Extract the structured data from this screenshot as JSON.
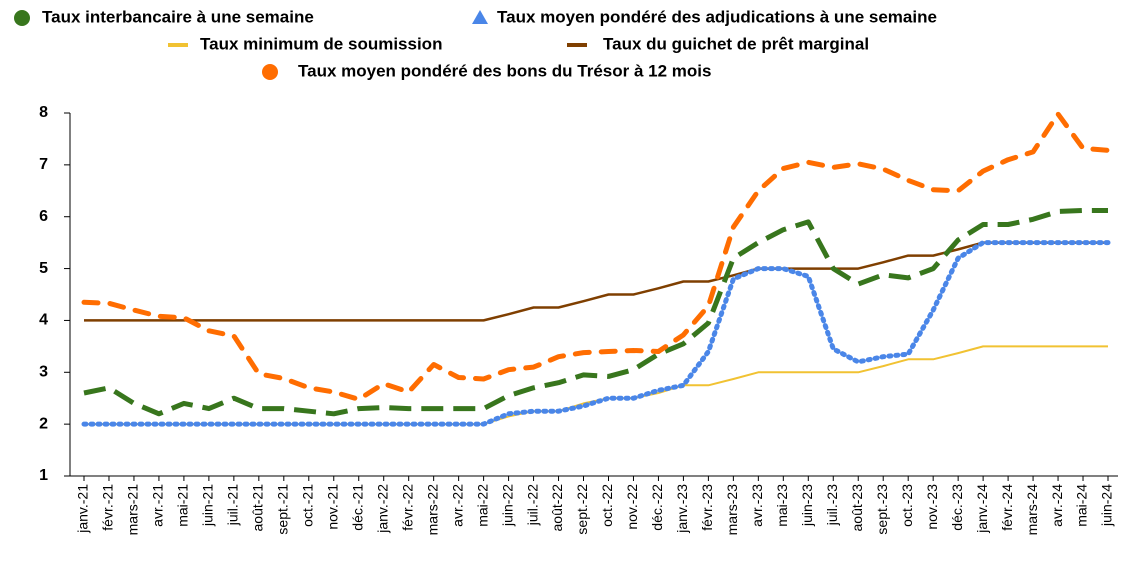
{
  "chart_data": {
    "type": "line",
    "categories": [
      "janv.-21",
      "févr.-21",
      "mars-21",
      "avr.-21",
      "mai-21",
      "juin-21",
      "juil.-21",
      "août-21",
      "sept.-21",
      "oct.-21",
      "nov.-21",
      "déc.-21",
      "janv.-22",
      "févr.-22",
      "mars-22",
      "avr.-22",
      "mai-22",
      "juin-22",
      "juil.-22",
      "août-22",
      "sept.-22",
      "oct.-22",
      "nov.-22",
      "déc.-22",
      "janv.-23",
      "févr.-23",
      "mars-23",
      "avr.-23",
      "mai-23",
      "juin-23",
      "juil.-23",
      "août-23",
      "sept.-23",
      "oct.-23",
      "nov.-23",
      "déc.-23",
      "janv.-24",
      "févr.-24",
      "mars-24",
      "avr.-24",
      "mai-24",
      "juin-24"
    ],
    "series": [
      {
        "name": "Taux interbancaire à une semaine",
        "color": "#38761d",
        "values": [
          2.6,
          2.7,
          2.4,
          2.2,
          2.4,
          2.3,
          2.5,
          2.3,
          2.3,
          2.25,
          2.2,
          2.3,
          2.32,
          2.3,
          2.3,
          2.3,
          2.3,
          2.55,
          2.7,
          2.8,
          2.95,
          2.92,
          3.05,
          3.35,
          3.55,
          3.95,
          5.2,
          5.5,
          5.75,
          5.9,
          5.0,
          4.7,
          4.88,
          4.82,
          5.0,
          5.55,
          5.85,
          5.85,
          5.95,
          6.1,
          6.12,
          6.12
        ]
      },
      {
        "name": "Taux moyen pondéré des adjudications à une semaine",
        "color": "#4a86e8",
        "values": [
          2,
          2,
          2,
          2,
          2,
          2,
          2,
          2,
          2,
          2,
          2,
          2,
          2,
          2,
          2,
          2,
          2,
          2.2,
          2.25,
          2.25,
          2.35,
          2.5,
          2.5,
          2.65,
          2.75,
          3.4,
          4.8,
          5.0,
          5.0,
          4.85,
          3.45,
          3.2,
          3.3,
          3.35,
          4.2,
          5.2,
          5.5,
          5.5,
          5.5,
          5.5,
          5.5,
          5.5
        ]
      },
      {
        "name": "Taux minimum de soumission",
        "color": "#f1c232",
        "values": [
          2,
          2,
          2,
          2,
          2,
          2,
          2,
          2,
          2,
          2,
          2,
          2,
          2,
          2,
          2,
          2,
          2,
          2.15,
          2.25,
          2.25,
          2.4,
          2.5,
          2.5,
          2.6,
          2.75,
          2.75,
          2.87,
          3,
          3,
          3,
          3,
          3,
          3.12,
          3.25,
          3.25,
          3.37,
          3.5,
          3.5,
          3.5,
          3.5,
          3.5,
          3.5
        ]
      },
      {
        "name": "Taux du guichet de prêt marginal",
        "color": "#7f3f00",
        "values": [
          4,
          4,
          4,
          4,
          4,
          4,
          4,
          4,
          4,
          4,
          4,
          4,
          4,
          4,
          4,
          4,
          4,
          4.12,
          4.25,
          4.25,
          4.37,
          4.5,
          4.5,
          4.62,
          4.75,
          4.75,
          4.87,
          5,
          5,
          5,
          5,
          5,
          5.12,
          5.25,
          5.25,
          5.37,
          5.5,
          5.5,
          5.5,
          5.5,
          5.5,
          5.5
        ]
      },
      {
        "name": "Taux moyen pondéré des bons du Trésor à 12 mois",
        "color": "#ff6d01",
        "values": [
          4.35,
          4.33,
          4.2,
          4.08,
          4.05,
          3.8,
          3.7,
          2.97,
          2.88,
          2.7,
          2.62,
          2.48,
          2.78,
          2.62,
          3.15,
          2.9,
          2.87,
          3.05,
          3.1,
          3.3,
          3.38,
          3.4,
          3.42,
          3.4,
          3.72,
          4.28,
          5.8,
          6.5,
          6.93,
          7.05,
          6.95,
          7.02,
          6.92,
          6.7,
          6.52,
          6.5,
          6.88,
          7.1,
          7.25,
          7.98,
          7.32,
          7.28
        ]
      }
    ],
    "ylim": [
      1,
      8
    ],
    "yticks": [
      1,
      2,
      3,
      4,
      5,
      6,
      7,
      8
    ]
  }
}
